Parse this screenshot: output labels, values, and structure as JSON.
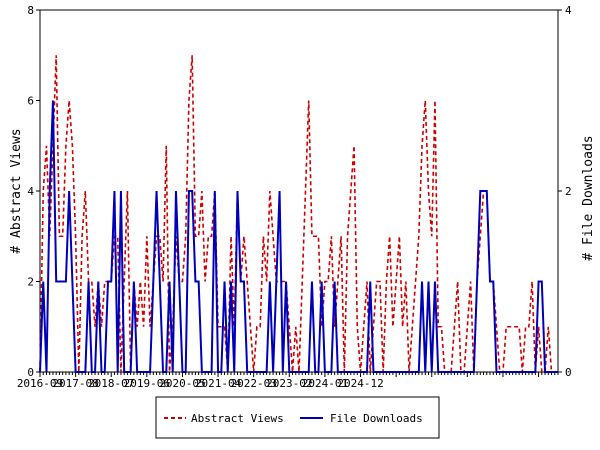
{
  "chart_data": {
    "type": "line",
    "ylabel": "# Abstract Views",
    "y2label": "# File Downloads",
    "ylim": [
      0,
      8
    ],
    "y2lim": [
      0,
      4
    ],
    "yticks": [
      "0",
      "2",
      "4",
      "6",
      "8"
    ],
    "y2ticks": [
      "0",
      "2",
      "4"
    ],
    "xticks": [
      "2016-09",
      "2017-08",
      "2018-07",
      "2019-06",
      "2020-05",
      "2021-04",
      "2022-03",
      "2023-02",
      "2024-01",
      "2024-12"
    ],
    "x_start": "2016-09",
    "legend_position": "bottom",
    "grid": false,
    "series": [
      {
        "name": "Abstract Views",
        "axis": "left",
        "color": "#cc0000",
        "style": "dashed",
        "values": [
          0,
          4,
          5,
          3,
          5,
          7,
          3,
          3,
          5,
          6,
          5,
          3,
          0,
          3,
          4,
          2,
          2,
          1,
          2,
          1,
          2,
          2,
          2,
          3,
          3,
          0,
          2,
          4,
          0,
          2,
          1,
          2,
          1,
          3,
          1,
          2,
          3,
          3,
          2,
          5,
          0,
          1,
          3,
          2,
          2,
          3,
          6,
          7,
          3,
          3,
          4,
          2,
          3,
          3,
          4,
          1,
          1,
          1,
          0,
          3,
          1,
          4,
          2,
          3,
          2,
          1,
          0,
          1,
          1,
          3,
          2,
          4,
          3,
          2,
          2,
          2,
          2,
          1,
          0,
          1,
          0,
          2,
          4,
          6,
          3,
          3,
          3,
          1,
          2,
          2,
          3,
          1,
          2,
          3,
          0,
          3,
          4,
          5,
          1,
          0,
          1,
          2,
          0,
          1,
          2,
          2,
          0,
          2,
          3,
          1,
          2,
          3,
          1,
          2,
          0,
          1,
          2,
          3,
          5,
          6,
          4,
          3,
          6,
          1,
          1,
          0,
          0,
          0,
          1,
          2,
          0,
          0,
          1,
          2,
          0,
          2,
          3,
          4,
          4,
          2,
          2,
          1,
          0,
          0,
          1,
          1,
          1,
          1,
          1,
          0,
          1,
          1,
          2,
          0,
          1,
          0,
          0,
          1,
          0,
          0,
          0
        ]
      },
      {
        "name": "File Downloads",
        "axis": "right",
        "color": "#0000bb",
        "style": "solid",
        "values": [
          0,
          1,
          0,
          2,
          3,
          1,
          1,
          1,
          1,
          2,
          1,
          0,
          0,
          0,
          0,
          1,
          0,
          0,
          1,
          0,
          0,
          1,
          1,
          2,
          0,
          2,
          0,
          0,
          0,
          1,
          0,
          0,
          0,
          0,
          0,
          1,
          2,
          1,
          0,
          0,
          1,
          0,
          2,
          1,
          0,
          0,
          2,
          2,
          1,
          1,
          0,
          0,
          0,
          0,
          2,
          0,
          0,
          1,
          0,
          1,
          0,
          2,
          1,
          1,
          0,
          0,
          0,
          0,
          0,
          0,
          0,
          1,
          0,
          1,
          2,
          0,
          1,
          0,
          0,
          0,
          0,
          0,
          0,
          0,
          1,
          0,
          0,
          1,
          0,
          0,
          0,
          1,
          0,
          0,
          0,
          0,
          0,
          0,
          0,
          0,
          0,
          0,
          1,
          0,
          0,
          0,
          0,
          0,
          0,
          0,
          0,
          0,
          0,
          0,
          0,
          0,
          0,
          0,
          1,
          0,
          1,
          0,
          1,
          0,
          0,
          0,
          0,
          0,
          0,
          0,
          0,
          0,
          0,
          0,
          0,
          1,
          2,
          2,
          2,
          1,
          1,
          0,
          0,
          0,
          0,
          0,
          0,
          0,
          0,
          0,
          0,
          0,
          0,
          0,
          1,
          1,
          0,
          0,
          0,
          0,
          0
        ]
      }
    ]
  }
}
